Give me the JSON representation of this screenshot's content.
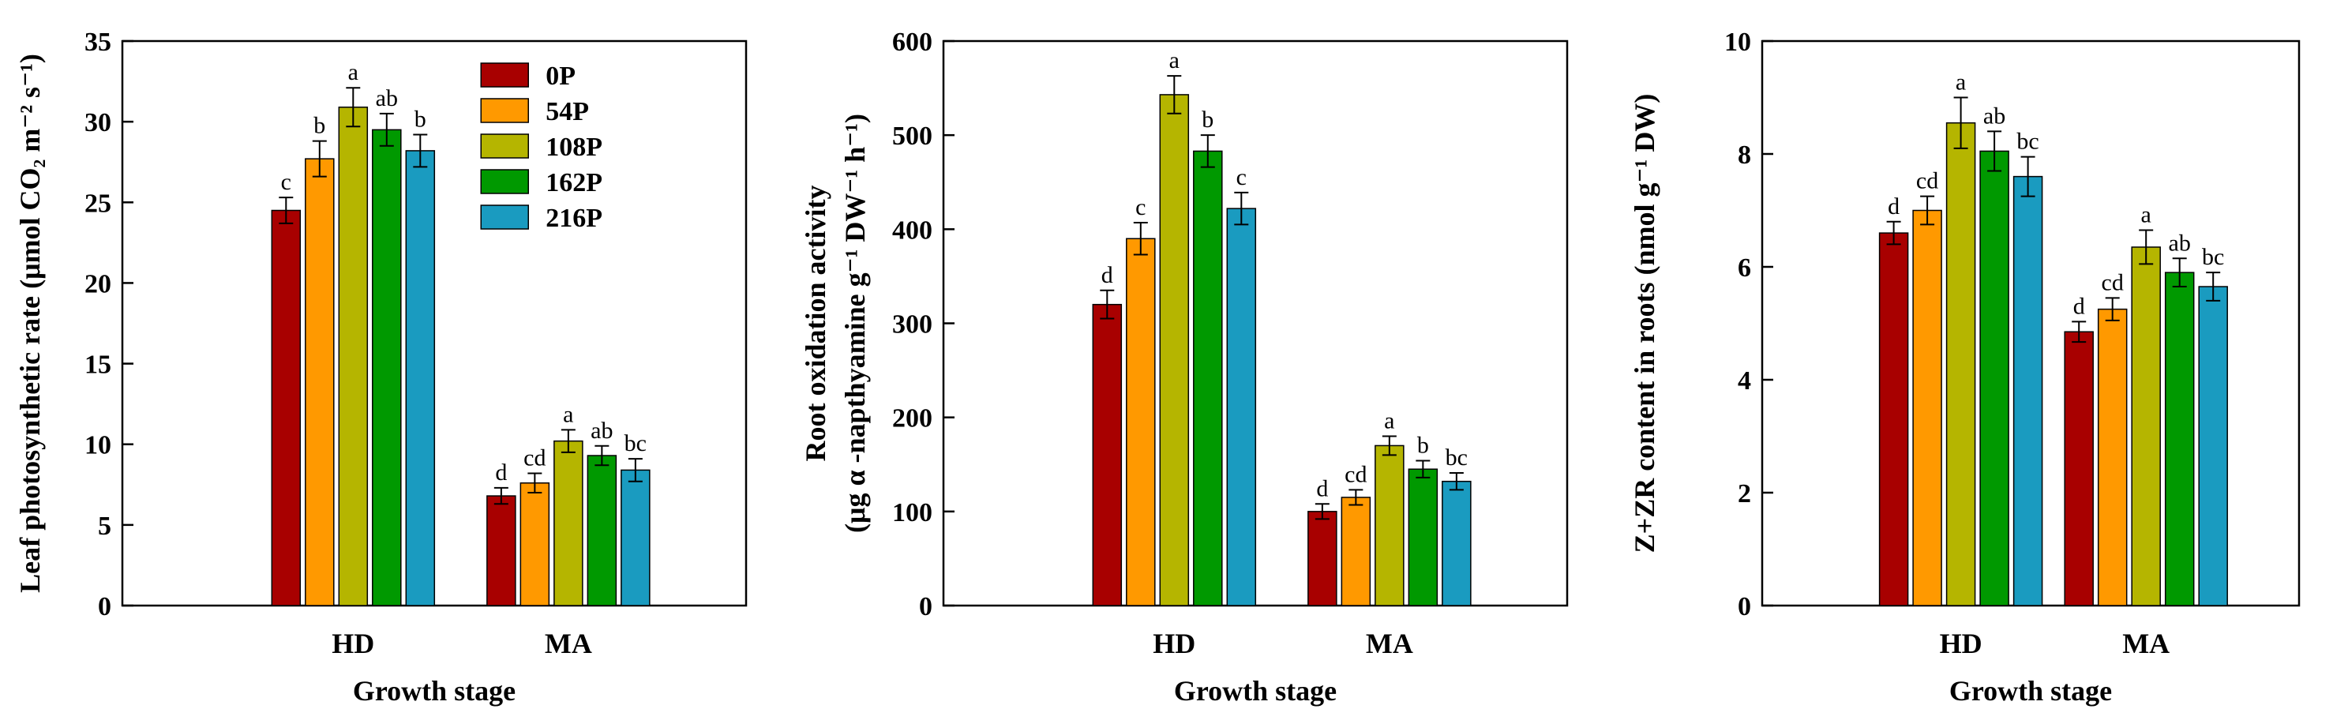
{
  "series_colors": [
    "#A80000",
    "#FF9900",
    "#B5B500",
    "#009900",
    "#1A9BC0"
  ],
  "legend": [
    "0P",
    "54P",
    "108P",
    "162P",
    "216P"
  ],
  "chart_data": [
    {
      "type": "bar",
      "categories": [
        "HD",
        "MA"
      ],
      "xlabel": "Growth stage",
      "ylabel": "Leaf photosynthetic rate (μmol CO₂ m⁻² s⁻¹)",
      "ylim": [
        0,
        35
      ],
      "yticks": [
        "0",
        "5",
        "10",
        "15",
        "20",
        "25",
        "30",
        "35"
      ],
      "legend_position": "top-right",
      "series": [
        {
          "name": "0P",
          "values": [
            24.5,
            6.8
          ],
          "errors": [
            0.8,
            0.5
          ],
          "labels": [
            "c",
            "d"
          ]
        },
        {
          "name": "54P",
          "values": [
            27.7,
            7.6
          ],
          "errors": [
            1.1,
            0.6
          ],
          "labels": [
            "b",
            "cd"
          ]
        },
        {
          "name": "108P",
          "values": [
            30.9,
            10.2
          ],
          "errors": [
            1.2,
            0.7
          ],
          "labels": [
            "a",
            "a"
          ]
        },
        {
          "name": "162P",
          "values": [
            29.5,
            9.3
          ],
          "errors": [
            1.0,
            0.6
          ],
          "labels": [
            "ab",
            "ab"
          ]
        },
        {
          "name": "216P",
          "values": [
            28.2,
            8.4
          ],
          "errors": [
            1.0,
            0.7
          ],
          "labels": [
            "b",
            "bc"
          ]
        }
      ]
    },
    {
      "type": "bar",
      "categories": [
        "HD",
        "MA"
      ],
      "xlabel": "Growth stage",
      "ylabel": "Root oxidation activity",
      "ylabel2": "(μg α -napthyamine g⁻¹ DW⁻¹ h⁻¹)",
      "ylim": [
        0,
        600
      ],
      "yticks": [
        "0",
        "100",
        "200",
        "300",
        "400",
        "500",
        "600"
      ],
      "series": [
        {
          "name": "0P",
          "values": [
            320,
            100
          ],
          "errors": [
            15,
            8
          ],
          "labels": [
            "d",
            "d"
          ]
        },
        {
          "name": "54P",
          "values": [
            390,
            115
          ],
          "errors": [
            17,
            8
          ],
          "labels": [
            "c",
            "cd"
          ]
        },
        {
          "name": "108P",
          "values": [
            543,
            170
          ],
          "errors": [
            20,
            10
          ],
          "labels": [
            "a",
            "a"
          ]
        },
        {
          "name": "162P",
          "values": [
            483,
            145
          ],
          "errors": [
            17,
            9
          ],
          "labels": [
            "b",
            "b"
          ]
        },
        {
          "name": "216P",
          "values": [
            422,
            132
          ],
          "errors": [
            17,
            9
          ],
          "labels": [
            "c",
            "bc"
          ]
        }
      ]
    },
    {
      "type": "bar",
      "categories": [
        "HD",
        "MA"
      ],
      "xlabel": "Growth stage",
      "ylabel": "Z+ZR content in roots  (nmol g⁻¹ DW)",
      "ylim": [
        0,
        10
      ],
      "yticks": [
        "0",
        "2",
        "4",
        "6",
        "8",
        "10"
      ],
      "series": [
        {
          "name": "0P",
          "values": [
            6.6,
            4.85
          ],
          "errors": [
            0.2,
            0.18
          ],
          "labels": [
            "d",
            "d"
          ]
        },
        {
          "name": "54P",
          "values": [
            7.0,
            5.25
          ],
          "errors": [
            0.25,
            0.2
          ],
          "labels": [
            "cd",
            "cd"
          ]
        },
        {
          "name": "108P",
          "values": [
            8.55,
            6.35
          ],
          "errors": [
            0.45,
            0.3
          ],
          "labels": [
            "a",
            "a"
          ]
        },
        {
          "name": "162P",
          "values": [
            8.05,
            5.9
          ],
          "errors": [
            0.35,
            0.25
          ],
          "labels": [
            "ab",
            "ab"
          ]
        },
        {
          "name": "216P",
          "values": [
            7.6,
            5.65
          ],
          "errors": [
            0.35,
            0.25
          ],
          "labels": [
            "bc",
            "bc"
          ]
        }
      ]
    }
  ]
}
